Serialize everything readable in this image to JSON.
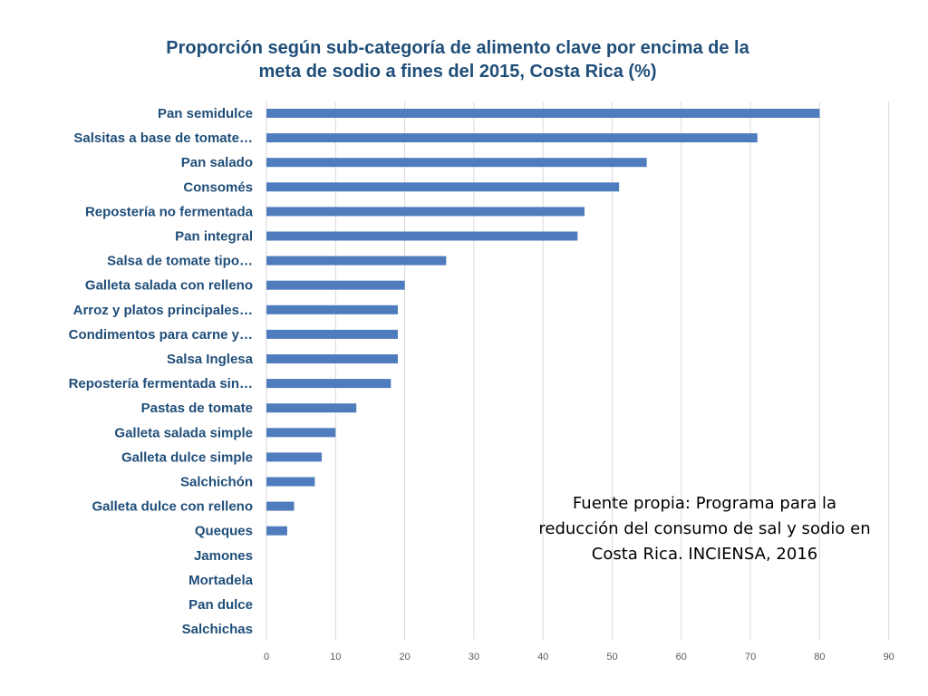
{
  "chart_data": {
    "type": "bar",
    "orientation": "horizontal",
    "title_lines": [
      "Proporción según sub-categoría de alimento clave por encima de la",
      "meta de sodio a fines  del 2015, Costa Rica (%)"
    ],
    "categories": [
      "Pan semidulce",
      "Salsitas a base de tomate…",
      "Pan salado",
      "Consomés",
      "Repostería no fermentada",
      "Pan integral",
      "Salsa de tomate tipo…",
      "Galleta salada con relleno",
      "Arroz y platos principales…",
      "Condimentos para carne y…",
      "Salsa Inglesa",
      "Repostería fermentada sin…",
      "Pastas de tomate",
      "Galleta salada simple",
      "Galleta dulce simple",
      "Salchichón",
      "Galleta dulce con relleno",
      "Queques",
      "Jamones",
      "Mortadela",
      "Pan dulce",
      "Salchichas"
    ],
    "values": [
      80,
      71,
      55,
      51,
      46,
      45,
      26,
      20,
      19,
      19,
      19,
      18,
      13,
      10,
      8,
      7,
      4,
      3,
      0,
      0,
      0,
      0
    ],
    "xlim": [
      0,
      90
    ],
    "x_ticks": [
      "0",
      "10",
      "20",
      "30",
      "40",
      "50",
      "60",
      "70",
      "80",
      "90"
    ],
    "grid": true,
    "bar_color": "#4f7cbd",
    "label_color": "#1f4e79",
    "grid_color": "#d9d9d9"
  },
  "annotation": {
    "source_lines": [
      "Fuente propia: Programa para la",
      "reducción del consumo de sal y sodio en",
      "Costa Rica. INCIENSA, 2016"
    ]
  }
}
